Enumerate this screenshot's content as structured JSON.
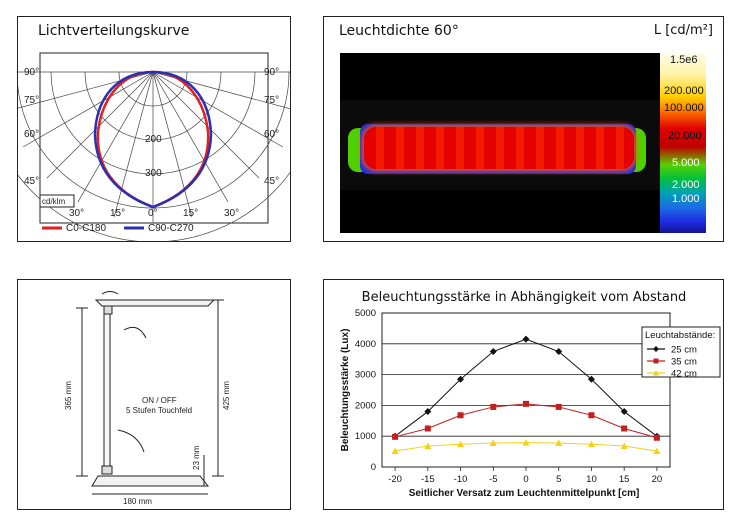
{
  "light_distribution": {
    "title": "Lichtverteilungskurve",
    "unit_label": "cd/klm",
    "side_angles": [
      "90°",
      "75°",
      "60°",
      "45°"
    ],
    "bottom_angles": [
      "30°",
      "15°",
      "0°",
      "15°",
      "30°"
    ],
    "radial_labels": [
      "200",
      "300"
    ],
    "legend": [
      {
        "label": "C0-C180",
        "color": "#e0211f"
      },
      {
        "label": "C90-C270",
        "color": "#2a2fb3"
      }
    ]
  },
  "luminance": {
    "title": "Leuchtdichte 60°",
    "unit": "L [cd/m²]",
    "scale": [
      {
        "label": "1.5e6",
        "color": "#fffbd0"
      },
      {
        "label": "200.000",
        "color": "#ffd000"
      },
      {
        "label": "100.000",
        "color": "#ff6000"
      },
      {
        "label": "20.000",
        "color": "#e10000"
      },
      {
        "label": "5.000",
        "color": "#6ed300"
      },
      {
        "label": "2.000",
        "color": "#00a6b8"
      },
      {
        "label": "1.000",
        "color": "#1d2be3"
      }
    ]
  },
  "dimensions": {
    "height_arm": "365 mm",
    "height_total": "425 mm",
    "switch_line1": "ON / OFF",
    "switch_line2": "5 Stufen Touchfeld",
    "base_height": "23 mm",
    "base_width": "180 mm"
  },
  "chart_data": {
    "type": "line",
    "title": "Beleuchtungsstärke in Abhängigkeit vom Abstand",
    "xlabel": "Seitlicher Versatz zum Leuchtenmittelpunkt [cm]",
    "ylabel": "Beleuchtungsstärke (Lux)",
    "x": [
      -20,
      -15,
      -10,
      -5,
      0,
      5,
      10,
      15,
      20
    ],
    "xlim": [
      -22,
      22
    ],
    "ylim": [
      0,
      5000
    ],
    "yticks": [
      0,
      1000,
      2000,
      3000,
      4000,
      5000
    ],
    "xticks": [
      -20,
      -15,
      -10,
      -5,
      0,
      5,
      10,
      15,
      20
    ],
    "grid": true,
    "legend_title": "Leuchtabstände:",
    "legend_position": "top-right",
    "series": [
      {
        "name": "25 cm",
        "color": "#111111",
        "marker": "diamond",
        "values": [
          1000,
          1800,
          2850,
          3750,
          4150,
          3750,
          2850,
          1800,
          1000
        ]
      },
      {
        "name": "35 cm",
        "color": "#c0201f",
        "marker": "square",
        "values": [
          980,
          1250,
          1680,
          1950,
          2050,
          1950,
          1680,
          1250,
          950
        ]
      },
      {
        "name": "42 cm",
        "color": "#f2d21a",
        "marker": "triangle",
        "values": [
          520,
          680,
          740,
          780,
          790,
          780,
          740,
          680,
          520
        ]
      }
    ]
  }
}
